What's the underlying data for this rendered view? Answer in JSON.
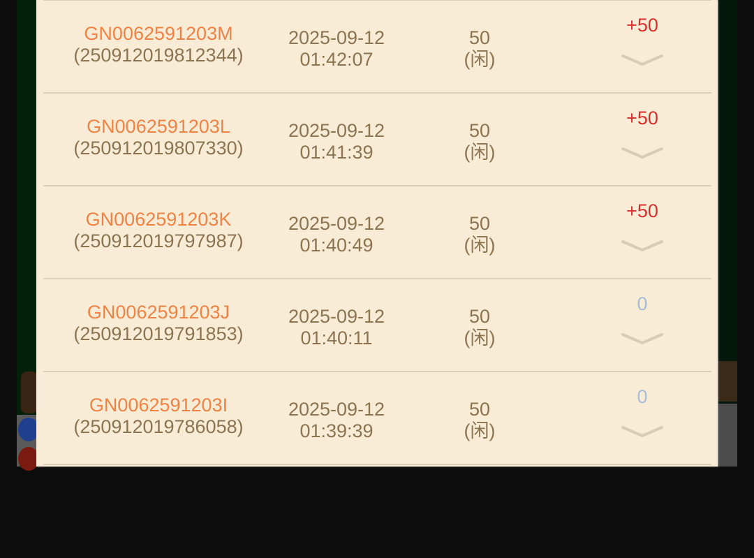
{
  "records": [
    {
      "game_id": "GN0062591203M",
      "order_no": "(250912019812344)",
      "date": "2025-09-12",
      "time": "01:42:07",
      "bet": "50",
      "bet_side": "(闲)",
      "result": "+50",
      "result_type": "win"
    },
    {
      "game_id": "GN0062591203L",
      "order_no": "(250912019807330)",
      "date": "2025-09-12",
      "time": "01:41:39",
      "bet": "50",
      "bet_side": "(闲)",
      "result": "+50",
      "result_type": "win"
    },
    {
      "game_id": "GN0062591203K",
      "order_no": "(250912019797987)",
      "date": "2025-09-12",
      "time": "01:40:49",
      "bet": "50",
      "bet_side": "(闲)",
      "result": "+50",
      "result_type": "win"
    },
    {
      "game_id": "GN0062591203J",
      "order_no": "(250912019791853)",
      "date": "2025-09-12",
      "time": "01:40:11",
      "bet": "50",
      "bet_side": "(闲)",
      "result": "0",
      "result_type": "zero"
    },
    {
      "game_id": "GN0062591203I",
      "order_no": "(250912019786058)",
      "date": "2025-09-12",
      "time": "01:39:39",
      "bet": "50",
      "bet_side": "(闲)",
      "result": "0",
      "result_type": "zero"
    }
  ],
  "colors": {
    "panel": "#f8ecd7",
    "game_id": "#ee8344",
    "text": "#8d7451",
    "win": "#d9302b",
    "zero": "#a8bcd2"
  }
}
